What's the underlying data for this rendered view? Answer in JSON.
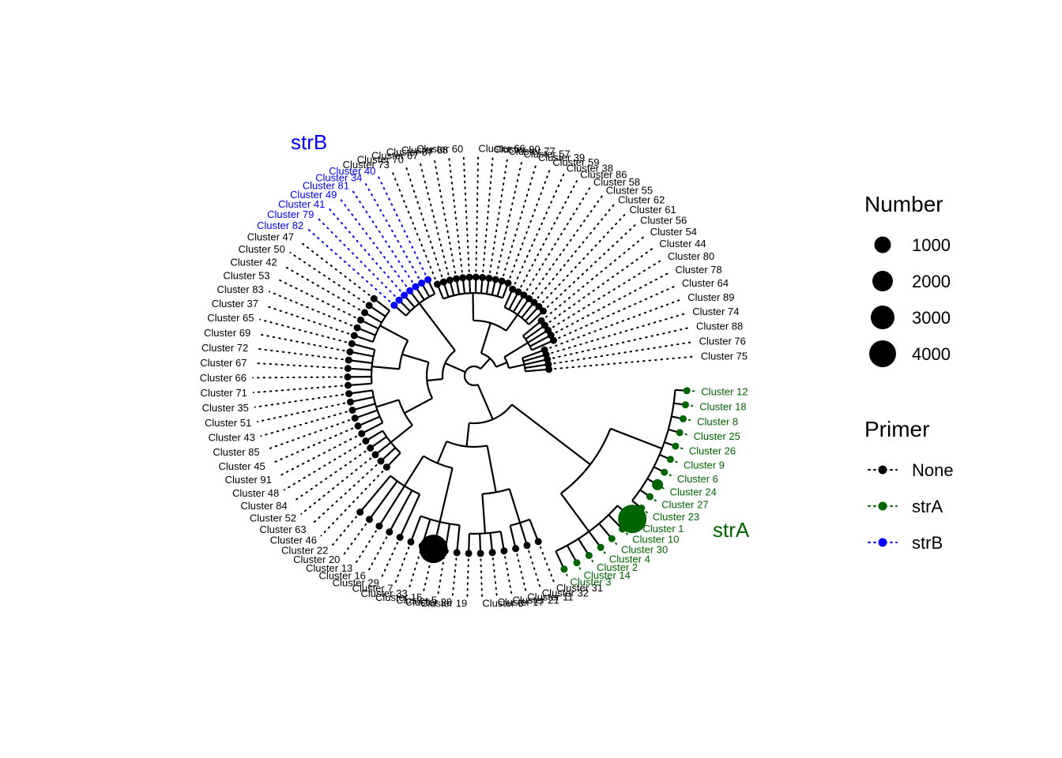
{
  "colors": {
    "None": "#000000",
    "strA": "#006400",
    "strB": "#0000ff"
  },
  "group_labels": [
    {
      "text": "strB",
      "primer": "strB"
    },
    {
      "text": "strA",
      "primer": "strA"
    }
  ],
  "legend": {
    "number": {
      "title": "Number",
      "items": [
        "1000",
        "2000",
        "3000",
        "4000"
      ],
      "values": [
        1000,
        2000,
        3000,
        4000
      ]
    },
    "primer": {
      "title": "Primer",
      "items": [
        "None",
        "strA",
        "strB"
      ]
    }
  },
  "tips": [
    {
      "label": "Cluster 75",
      "primer": "None"
    },
    {
      "label": "Cluster 76",
      "primer": "None"
    },
    {
      "label": "Cluster 88",
      "primer": "None"
    },
    {
      "label": "Cluster 74",
      "primer": "None"
    },
    {
      "label": "Cluster 89",
      "primer": "None"
    },
    {
      "label": "Cluster 64",
      "primer": "None"
    },
    {
      "label": "Cluster 78",
      "primer": "None"
    },
    {
      "label": "Cluster 80",
      "primer": "None"
    },
    {
      "label": "Cluster 44",
      "primer": "None"
    },
    {
      "label": "Cluster 54",
      "primer": "None"
    },
    {
      "label": "Cluster 56",
      "primer": "None"
    },
    {
      "label": "Cluster 61",
      "primer": "None"
    },
    {
      "label": "Cluster 62",
      "primer": "None"
    },
    {
      "label": "Cluster 55",
      "primer": "None"
    },
    {
      "label": "Cluster 58",
      "primer": "None"
    },
    {
      "label": "Cluster 86",
      "primer": "None"
    },
    {
      "label": "Cluster 38",
      "primer": "None"
    },
    {
      "label": "Cluster 59",
      "primer": "None"
    },
    {
      "label": "Cluster 39",
      "primer": "None"
    },
    {
      "label": "Cluster 57",
      "primer": "None"
    },
    {
      "label": "Cluster 77",
      "primer": "None"
    },
    {
      "label": "Cluster 90",
      "primer": "None"
    },
    {
      "label": "Cluster 66",
      "primer": "None"
    },
    {
      "label": "Cluster 60",
      "primer": "None"
    },
    {
      "label": "Cluster 68",
      "primer": "None"
    },
    {
      "label": "Cluster 87",
      "primer": "None"
    },
    {
      "label": "Cluster 67",
      "primer": "None"
    },
    {
      "label": "Cluster 70",
      "primer": "None"
    },
    {
      "label": "Cluster 73",
      "primer": "None"
    },
    {
      "label": "Cluster 40",
      "primer": "strB"
    },
    {
      "label": "Cluster 34",
      "primer": "strB"
    },
    {
      "label": "Cluster 81",
      "primer": "strB"
    },
    {
      "label": "Cluster 49",
      "primer": "strB"
    },
    {
      "label": "Cluster 41",
      "primer": "strB"
    },
    {
      "label": "Cluster 79",
      "primer": "strB"
    },
    {
      "label": "Cluster 82",
      "primer": "strB"
    },
    {
      "label": "Cluster 47",
      "primer": "None"
    },
    {
      "label": "Cluster 50",
      "primer": "None"
    },
    {
      "label": "Cluster 42",
      "primer": "None"
    },
    {
      "label": "Cluster 53",
      "primer": "None"
    },
    {
      "label": "Cluster 83",
      "primer": "None"
    },
    {
      "label": "Cluster 37",
      "primer": "None"
    },
    {
      "label": "Cluster 65",
      "primer": "None"
    },
    {
      "label": "Cluster 69",
      "primer": "None"
    },
    {
      "label": "Cluster 72",
      "primer": "None"
    },
    {
      "label": "Cluster 67",
      "primer": "None"
    },
    {
      "label": "Cluster 66",
      "primer": "None"
    },
    {
      "label": "Cluster 71",
      "primer": "None"
    },
    {
      "label": "Cluster 35",
      "primer": "None"
    },
    {
      "label": "Cluster 51",
      "primer": "None"
    },
    {
      "label": "Cluster 43",
      "primer": "None"
    },
    {
      "label": "Cluster 85",
      "primer": "None"
    },
    {
      "label": "Cluster 45",
      "primer": "None"
    },
    {
      "label": "Cluster 91",
      "primer": "None"
    },
    {
      "label": "Cluster 48",
      "primer": "None"
    },
    {
      "label": "Cluster 84",
      "primer": "None"
    },
    {
      "label": "Cluster 52",
      "primer": "None"
    },
    {
      "label": "Cluster 63",
      "primer": "None"
    },
    {
      "label": "Cluster 46",
      "primer": "None"
    },
    {
      "label": "Cluster 22",
      "primer": "None"
    },
    {
      "label": "Cluster 20",
      "primer": "None"
    },
    {
      "label": "Cluster 13",
      "primer": "None"
    },
    {
      "label": "Cluster 16",
      "primer": "None"
    },
    {
      "label": "Cluster 29",
      "primer": "None"
    },
    {
      "label": "Cluster 7",
      "primer": "None"
    },
    {
      "label": "Cluster 33",
      "primer": "None"
    },
    {
      "label": "Cluster 15",
      "primer": "None"
    },
    {
      "label": "Cluster 5",
      "primer": "None"
    },
    {
      "label": "Cluster 28",
      "primer": "None"
    },
    {
      "label": "Cluster 19",
      "primer": "None"
    },
    {
      "label": "Cluster 6",
      "primer": "None"
    },
    {
      "label": "Cluster 17",
      "primer": "None"
    },
    {
      "label": "Cluster 21",
      "primer": "None"
    },
    {
      "label": "Cluster 11",
      "primer": "None"
    },
    {
      "label": "Cluster 32",
      "primer": "None"
    },
    {
      "label": "Cluster 31",
      "primer": "None"
    },
    {
      "label": "Cluster 3",
      "primer": "strA"
    },
    {
      "label": "Cluster 14",
      "primer": "strA"
    },
    {
      "label": "Cluster 2",
      "primer": "strA"
    },
    {
      "label": "Cluster 4",
      "primer": "strA"
    },
    {
      "label": "Cluster 30",
      "primer": "strA"
    },
    {
      "label": "Cluster 10",
      "primer": "strA"
    },
    {
      "label": "Cluster 1",
      "primer": "strA"
    },
    {
      "label": "Cluster 23",
      "primer": "strA"
    },
    {
      "label": "Cluster 27",
      "primer": "strA"
    },
    {
      "label": "Cluster 24",
      "primer": "strA"
    },
    {
      "label": "Cluster 6",
      "primer": "strA"
    },
    {
      "label": "Cluster 9",
      "primer": "strA"
    },
    {
      "label": "Cluster 26",
      "primer": "strA"
    },
    {
      "label": "Cluster 25",
      "primer": "strA"
    },
    {
      "label": "Cluster 8",
      "primer": "strA"
    },
    {
      "label": "Cluster 18",
      "primer": "strA"
    },
    {
      "label": "Cluster 12",
      "primer": "strA"
    }
  ]
}
